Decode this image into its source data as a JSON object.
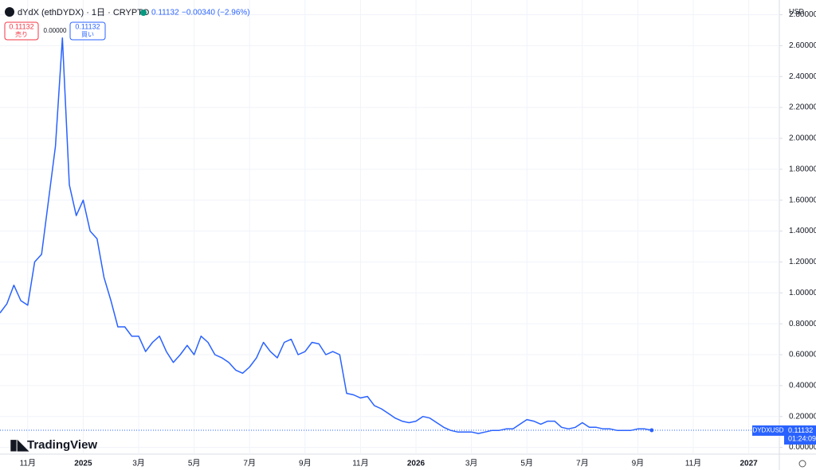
{
  "header": {
    "symbol": "dYdX (ethDYDX) · 1日 · CRYPTO",
    "price": "0.11132",
    "change": "−0.00340 (−2.96%)"
  },
  "trade": {
    "sell_price": "0.11132",
    "sell_label": "売り",
    "spread": "0.00000",
    "buy_price": "0.11132",
    "buy_label": "買い"
  },
  "currency": "USD",
  "last_price": {
    "symbol": "DYDXUSD",
    "price": "0.11132",
    "countdown": "01:24:09"
  },
  "brand": "TradingView",
  "chart_data": {
    "type": "line",
    "color": "#2962ff",
    "grid": true,
    "categories": [
      null,
      null,
      null,
      null,
      "11月",
      null,
      null,
      null,
      null,
      null,
      null,
      null,
      "2025",
      null,
      null,
      null,
      null,
      null,
      null,
      null,
      "3月",
      null,
      null,
      null,
      null,
      null,
      null,
      null,
      "5月",
      null,
      null,
      null,
      null,
      null,
      null,
      null,
      "7月",
      null,
      null,
      null,
      null,
      null,
      null,
      null,
      "9月",
      null,
      null,
      null,
      null,
      null,
      null,
      null,
      "11月",
      null,
      null,
      null,
      null,
      null,
      null,
      null,
      "2026",
      null,
      null,
      null,
      null,
      null,
      null,
      null,
      "3月",
      null,
      null,
      null,
      null,
      null,
      null,
      null,
      "5月",
      null,
      null,
      null,
      null,
      null,
      null,
      null,
      "7月",
      null,
      null,
      null,
      null,
      null,
      null,
      null,
      "9月",
      null,
      null,
      null,
      null,
      null,
      null,
      null,
      "11月",
      null,
      null,
      null,
      null,
      null,
      null,
      null,
      "2027"
    ],
    "values": [
      0.87,
      0.93,
      1.05,
      0.95,
      0.92,
      1.2,
      1.25,
      1.6,
      1.95,
      2.65,
      1.7,
      1.5,
      1.6,
      1.4,
      1.35,
      1.1,
      0.95,
      0.78,
      0.78,
      0.72,
      0.72,
      0.62,
      0.68,
      0.72,
      0.62,
      0.55,
      0.6,
      0.66,
      0.6,
      0.72,
      0.68,
      0.6,
      0.58,
      0.55,
      0.5,
      0.48,
      0.52,
      0.58,
      0.68,
      0.62,
      0.58,
      0.68,
      0.7,
      0.6,
      0.62,
      0.68,
      0.67,
      0.6,
      0.62,
      0.6,
      0.35,
      0.34,
      0.32,
      0.33,
      0.27,
      0.25,
      0.22,
      0.19,
      0.17,
      0.16,
      0.17,
      0.2,
      0.19,
      0.16,
      0.13,
      0.11,
      0.1,
      0.1,
      0.1,
      0.09,
      0.1,
      0.11,
      0.11,
      0.12,
      0.12,
      0.15,
      0.18,
      0.17,
      0.15,
      0.17,
      0.17,
      0.13,
      0.12,
      0.13,
      0.16,
      0.13,
      0.13,
      0.12,
      0.12,
      0.11,
      0.11,
      0.11,
      0.12,
      0.12,
      0.11132,
      null,
      null,
      null,
      null,
      null,
      null,
      null,
      null,
      null,
      null,
      null,
      null,
      null,
      null
    ],
    "ylim": [
      -0.0433,
      2.8953
    ],
    "yticks": [
      {
        "value": 0,
        "label": "0.00000"
      },
      {
        "value": 0.2,
        "label": "0.20000"
      },
      {
        "value": 0.4,
        "label": "0.40000"
      },
      {
        "value": 0.6,
        "label": "0.60000"
      },
      {
        "value": 0.8,
        "label": "0.80000"
      },
      {
        "value": 1,
        "label": "1.00000"
      },
      {
        "value": 1.2,
        "label": "1.20000"
      },
      {
        "value": 1.4,
        "label": "1.40000"
      },
      {
        "value": 1.6,
        "label": "1.60000"
      },
      {
        "value": 1.8,
        "label": "1.80000"
      },
      {
        "value": 2,
        "label": "2.00000"
      },
      {
        "value": 2.2,
        "label": "2.20000"
      },
      {
        "value": 2.4,
        "label": "2.40000"
      },
      {
        "value": 2.6,
        "label": "2.60000"
      },
      {
        "value": 2.8,
        "label": "2.80000"
      }
    ]
  }
}
